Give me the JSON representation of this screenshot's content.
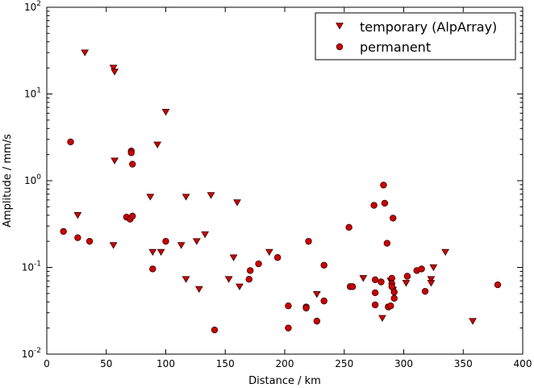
{
  "chart_data": {
    "type": "scatter",
    "xlabel": "Distance / km",
    "ylabel": "Amplitude / mm/s",
    "xlim": [
      0,
      400
    ],
    "ylim": [
      0.01,
      100
    ],
    "yscale": "log",
    "grid": false,
    "legend_position": "top-right",
    "x_ticks": [
      "0",
      "50",
      "100",
      "150",
      "200",
      "250",
      "300",
      "350",
      "400"
    ],
    "y_ticks": [
      {
        "base": "10",
        "exp": "-2"
      },
      {
        "base": "10",
        "exp": "-1"
      },
      {
        "base": "10",
        "exp": "0"
      },
      {
        "base": "10",
        "exp": "1"
      },
      {
        "base": "10",
        "exp": "2"
      }
    ],
    "series": [
      {
        "name": "temporary (AlpArray)",
        "marker": "triangle-down",
        "color": "#cc0000",
        "points": [
          [
            26,
            0.4
          ],
          [
            32,
            30
          ],
          [
            56,
            20
          ],
          [
            57,
            18
          ],
          [
            57,
            1.7
          ],
          [
            56,
            0.18
          ],
          [
            87,
            0.65
          ],
          [
            89,
            0.15
          ],
          [
            93,
            2.6
          ],
          [
            96,
            0.15
          ],
          [
            100,
            6.2
          ],
          [
            113,
            0.18
          ],
          [
            117,
            0.65
          ],
          [
            117,
            0.073
          ],
          [
            126,
            0.2
          ],
          [
            128,
            0.056
          ],
          [
            133,
            0.24
          ],
          [
            138,
            0.68
          ],
          [
            153,
            0.073
          ],
          [
            157,
            0.13
          ],
          [
            160,
            0.56
          ],
          [
            162,
            0.06
          ],
          [
            187,
            0.15
          ],
          [
            227,
            0.049
          ],
          [
            266,
            0.075
          ],
          [
            282,
            0.026
          ],
          [
            288,
            0.035
          ],
          [
            289,
            0.07
          ],
          [
            291,
            0.055
          ],
          [
            302,
            0.066
          ],
          [
            323,
            0.073
          ],
          [
            323,
            0.066
          ],
          [
            325,
            0.1
          ],
          [
            335,
            0.15
          ],
          [
            358,
            0.024
          ]
        ]
      },
      {
        "name": "permanent",
        "marker": "circle",
        "color": "#cc0000",
        "points": [
          [
            14,
            0.26
          ],
          [
            20,
            2.8
          ],
          [
            26,
            0.22
          ],
          [
            36,
            0.2
          ],
          [
            67,
            0.38
          ],
          [
            70,
            0.36
          ],
          [
            72,
            0.39
          ],
          [
            71,
            2.2
          ],
          [
            71,
            2.1
          ],
          [
            72,
            1.55
          ],
          [
            89,
            0.096
          ],
          [
            100,
            0.2
          ],
          [
            141,
            0.019
          ],
          [
            170,
            0.073
          ],
          [
            171,
            0.092
          ],
          [
            178,
            0.11
          ],
          [
            194,
            0.13
          ],
          [
            203,
            0.036
          ],
          [
            203,
            0.02
          ],
          [
            218,
            0.035
          ],
          [
            218,
            0.034
          ],
          [
            220,
            0.2
          ],
          [
            227,
            0.024
          ],
          [
            233,
            0.106
          ],
          [
            233,
            0.041
          ],
          [
            254,
            0.29
          ],
          [
            255,
            0.06
          ],
          [
            257,
            0.06
          ],
          [
            275,
            0.52
          ],
          [
            276,
            0.072
          ],
          [
            276,
            0.051
          ],
          [
            276,
            0.037
          ],
          [
            281,
            0.068
          ],
          [
            283,
            0.89
          ],
          [
            284,
            0.55
          ],
          [
            286,
            0.19
          ],
          [
            287,
            0.035
          ],
          [
            289,
            0.036
          ],
          [
            290,
            0.075
          ],
          [
            290,
            0.065
          ],
          [
            290,
            0.06
          ],
          [
            291,
            0.37
          ],
          [
            292,
            0.052
          ],
          [
            292,
            0.044
          ],
          [
            303,
            0.079
          ],
          [
            311,
            0.092
          ],
          [
            315,
            0.096
          ],
          [
            318,
            0.053
          ],
          [
            379,
            0.063
          ]
        ]
      }
    ]
  }
}
